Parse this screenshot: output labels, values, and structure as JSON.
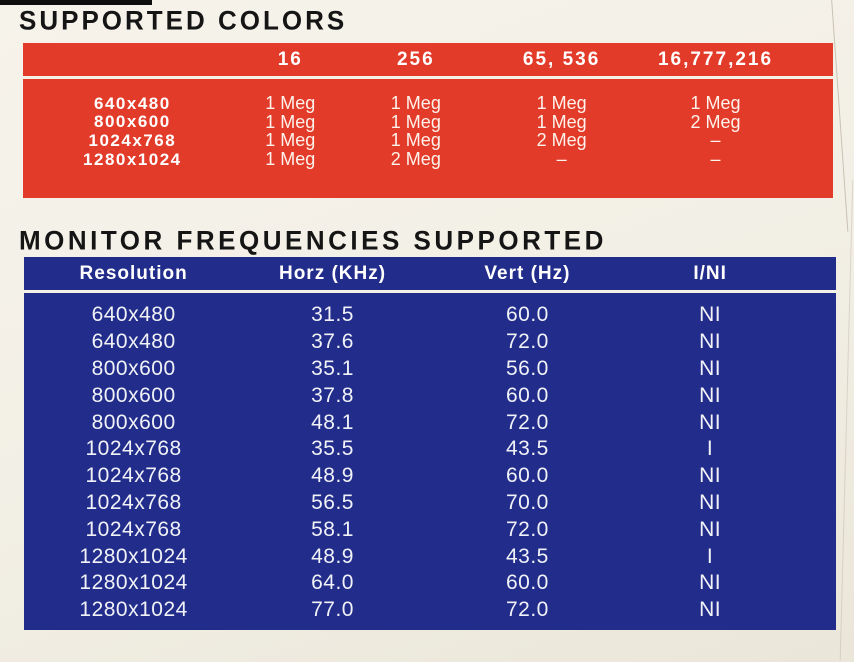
{
  "page": {
    "bg_color": "#f2efe5",
    "accent_red": "#e33b29",
    "accent_blue": "#222c8a"
  },
  "colors_table": {
    "title": "SUPPORTED COLORS",
    "columns": [
      "16",
      "256",
      "65, 536",
      "16,777,216"
    ],
    "rows": [
      {
        "resolution": "640x480",
        "values": [
          "1 Meg",
          "1 Meg",
          "1 Meg",
          "1 Meg"
        ]
      },
      {
        "resolution": "800x600",
        "values": [
          "1 Meg",
          "1 Meg",
          "1 Meg",
          "2 Meg"
        ]
      },
      {
        "resolution": "1024x768",
        "values": [
          "1 Meg",
          "1 Meg",
          "2 Meg",
          "–"
        ]
      },
      {
        "resolution": "1280x1024",
        "values": [
          "1 Meg",
          "2 Meg",
          "–",
          "–"
        ]
      }
    ]
  },
  "frequencies_table": {
    "title": "MONITOR FREQUENCIES SUPPORTED",
    "columns": [
      "Resolution",
      "Horz (KHz)",
      "Vert (Hz)",
      "I/NI"
    ],
    "rows": [
      [
        "640x480",
        "31.5",
        "60.0",
        "NI"
      ],
      [
        "640x480",
        "37.6",
        "72.0",
        "NI"
      ],
      [
        "800x600",
        "35.1",
        "56.0",
        "NI"
      ],
      [
        "800x600",
        "37.8",
        "60.0",
        "NI"
      ],
      [
        "800x600",
        "48.1",
        "72.0",
        "NI"
      ],
      [
        "1024x768",
        "35.5",
        "43.5",
        "I"
      ],
      [
        "1024x768",
        "48.9",
        "60.0",
        "NI"
      ],
      [
        "1024x768",
        "56.5",
        "70.0",
        "NI"
      ],
      [
        "1024x768",
        "58.1",
        "72.0",
        "NI"
      ],
      [
        "1280x1024",
        "48.9",
        "43.5",
        "I"
      ],
      [
        "1280x1024",
        "64.0",
        "60.0",
        "NI"
      ],
      [
        "1280x1024",
        "77.0",
        "72.0",
        "NI"
      ]
    ]
  }
}
